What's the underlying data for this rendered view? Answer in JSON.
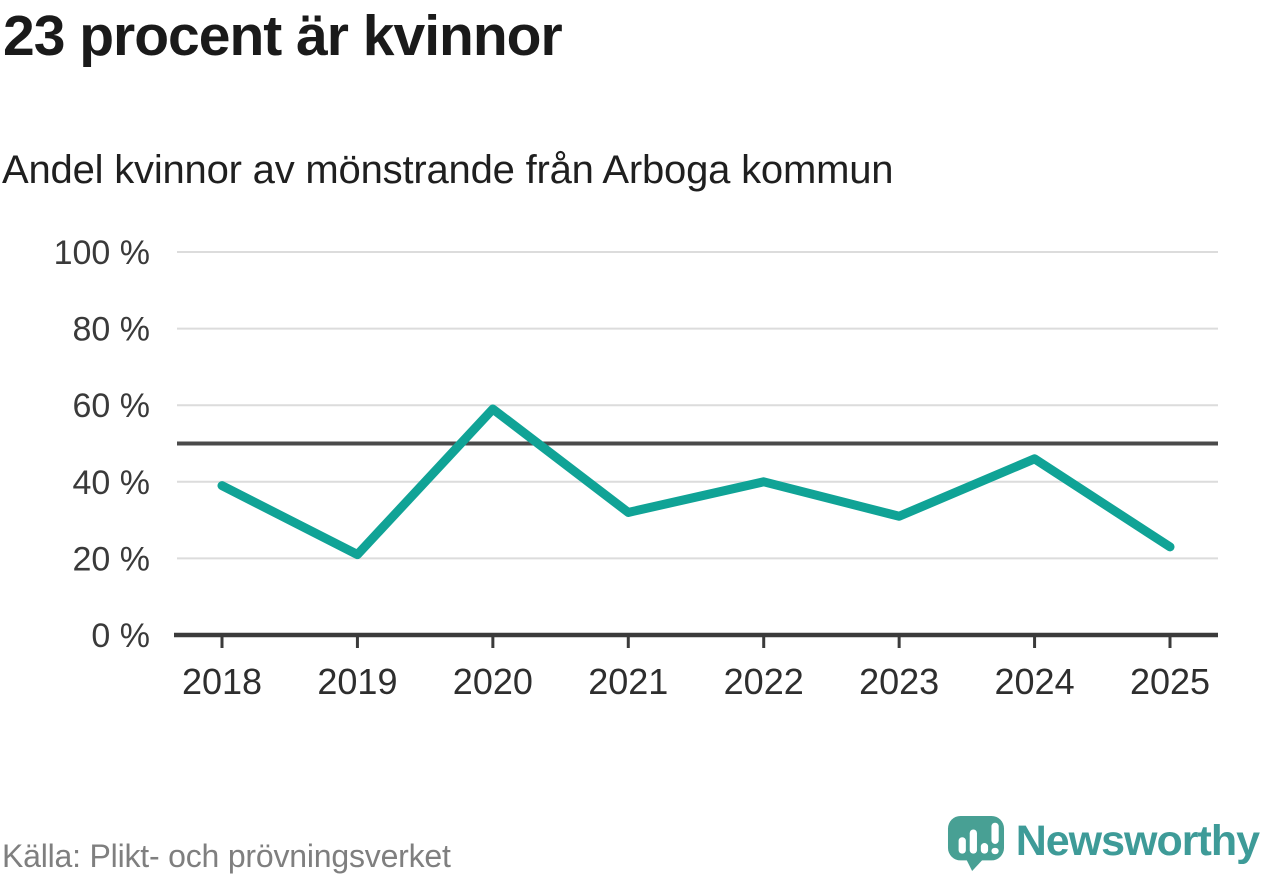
{
  "header": {
    "title": "23 procent är kvinnor",
    "subtitle": "Andel kvinnor av mönstrande från Arboga kommun"
  },
  "footer": {
    "source": "Källa: Plikt- och prövningsverket",
    "brand": "Newsworthy"
  },
  "chart_data": {
    "type": "line",
    "title": "23 procent är kvinnor",
    "subtitle": "Andel kvinnor av mönstrande från Arboga kommun",
    "categories": [
      "2018",
      "2019",
      "2020",
      "2021",
      "2022",
      "2023",
      "2024",
      "2025"
    ],
    "values": [
      39,
      21,
      59,
      32,
      40,
      31,
      46,
      23
    ],
    "unit": "%",
    "ylim": [
      0,
      100
    ],
    "yticks": [
      0,
      20,
      40,
      60,
      80,
      100
    ],
    "ytick_suffix": " %",
    "reference_line": 50,
    "grid": true,
    "legend": "none",
    "line_color": "#10A396",
    "gridline_color": "#dcdcdc",
    "reference_line_color": "#4a4a4a",
    "axis_color": "#3b3b3b",
    "tick_label_color": "#3a3a3a",
    "source": "Källa: Plikt- och prövningsverket",
    "brand_color": "#3E9B98",
    "logo_bubble_color": "#48A094"
  }
}
